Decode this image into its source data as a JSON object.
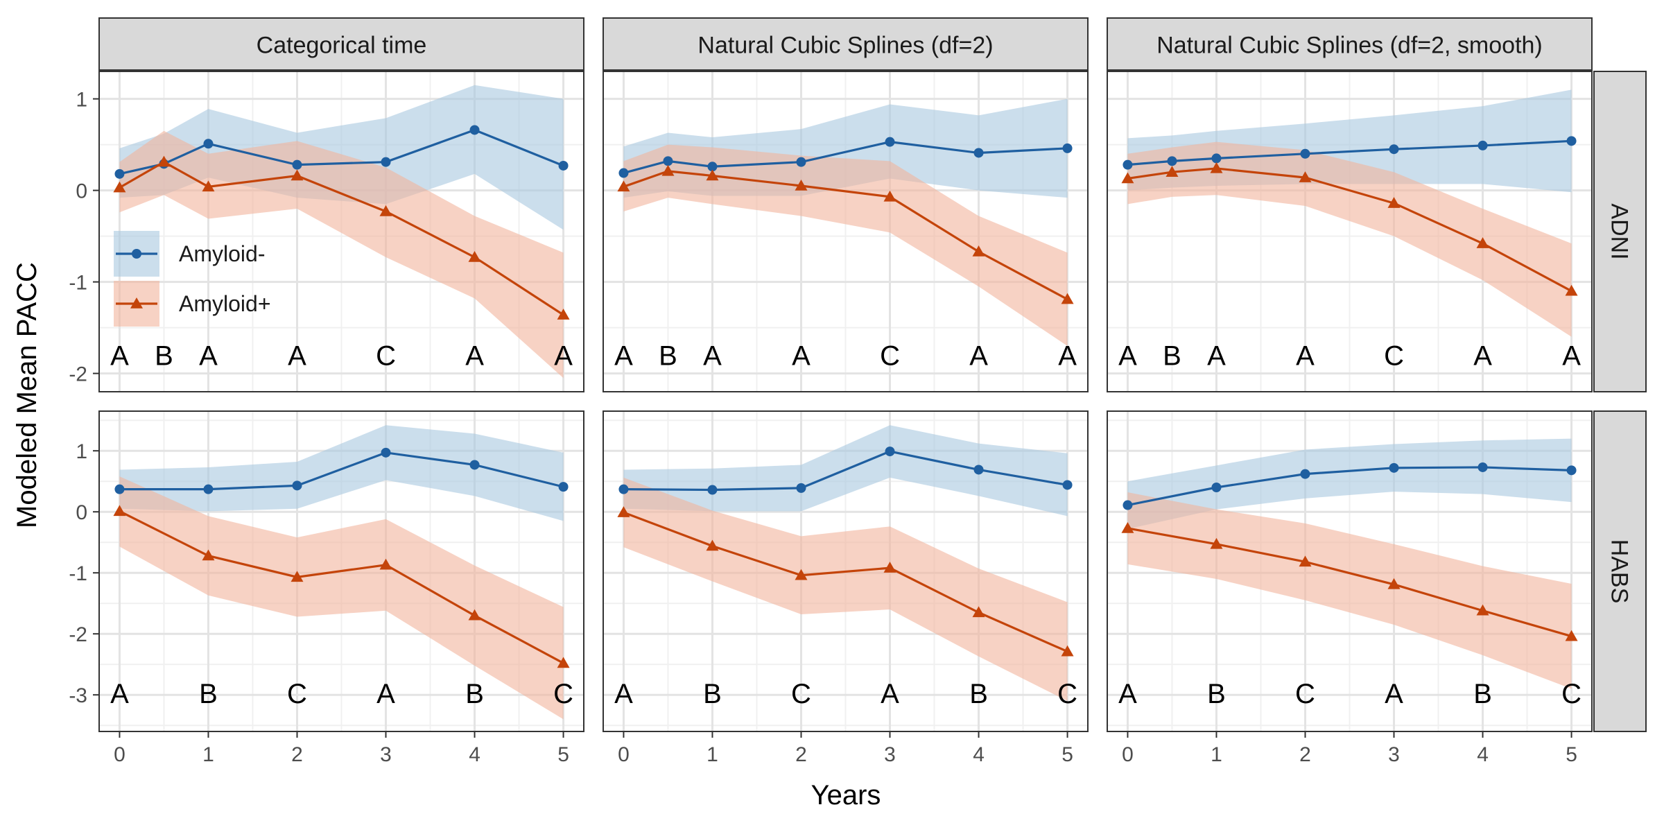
{
  "chart_data": {
    "type": "line",
    "ylabel": "Modeled Mean PACC",
    "xlabel": "Years",
    "xlim": [
      -0.23,
      5.23
    ],
    "x_ticks": [
      0,
      1,
      2,
      3,
      4,
      5
    ],
    "grid": true,
    "legend_position": "inside top-left of first panel",
    "colors": {
      "Amyloid-": "#1f5fa0",
      "Amyloid+": "#c4440a",
      "Amyloid-_band": "#a9c8e0",
      "Amyloid+_band": "#f1b49c"
    },
    "columns": [
      "Categorical time",
      "Natural Cubic Splines (df=2)",
      "Natural Cubic Splines (df=2, smooth)"
    ],
    "rows": [
      "ADNI",
      "HABS"
    ],
    "legend": [
      "Amyloid-",
      "Amyloid+"
    ],
    "row_axes": [
      {
        "ylim": [
          -2.2,
          1.3
        ],
        "ticks": [
          1,
          0,
          -1,
          -2
        ],
        "tick_labels": [
          "1",
          "0",
          "-1",
          "-2"
        ]
      },
      {
        "ylim": [
          -3.6,
          1.65
        ],
        "ticks": [
          1,
          0,
          -1,
          -2,
          -3
        ],
        "tick_labels": [
          "1",
          "0",
          "-1",
          "-2",
          "-3"
        ]
      }
    ],
    "panels": [
      {
        "column": "Categorical time",
        "row": "ADNI",
        "x": [
          0,
          0.5,
          1,
          2,
          3,
          4,
          5
        ],
        "letters": [
          "A",
          "B",
          "A",
          "A",
          "C",
          "A",
          "A"
        ],
        "series": [
          {
            "name": "Amyloid-",
            "values": [
              0.18,
              0.29,
              0.51,
              0.28,
              0.31,
              0.66,
              0.27
            ],
            "lower": [
              -0.08,
              -0.05,
              0.14,
              -0.08,
              -0.15,
              0.18,
              -0.43
            ],
            "upper": [
              0.46,
              0.62,
              0.89,
              0.63,
              0.79,
              1.15,
              1.0
            ]
          },
          {
            "name": "Amyloid+",
            "values": [
              0.03,
              0.31,
              0.04,
              0.16,
              -0.23,
              -0.73,
              -1.36
            ],
            "lower": [
              -0.24,
              -0.05,
              -0.31,
              -0.2,
              -0.73,
              -1.18,
              -2.05
            ],
            "upper": [
              0.31,
              0.65,
              0.4,
              0.54,
              0.25,
              -0.28,
              -0.68
            ]
          }
        ]
      },
      {
        "column": "Natural Cubic Splines (df=2)",
        "row": "ADNI",
        "x": [
          0,
          0.5,
          1,
          2,
          3,
          4,
          5
        ],
        "letters": [
          "A",
          "B",
          "A",
          "A",
          "C",
          "A",
          "A"
        ],
        "series": [
          {
            "name": "Amyloid-",
            "values": [
              0.19,
              0.32,
              0.26,
              0.31,
              0.53,
              0.41,
              0.46
            ],
            "lower": [
              -0.08,
              -0.01,
              -0.06,
              -0.06,
              0.13,
              0.0,
              -0.08
            ],
            "upper": [
              0.48,
              0.63,
              0.58,
              0.67,
              0.94,
              0.82,
              1.0
            ]
          },
          {
            "name": "Amyloid+",
            "values": [
              0.04,
              0.21,
              0.16,
              0.05,
              -0.07,
              -0.67,
              -1.19
            ],
            "lower": [
              -0.23,
              -0.08,
              -0.15,
              -0.28,
              -0.46,
              -1.05,
              -1.7
            ],
            "upper": [
              0.32,
              0.5,
              0.47,
              0.38,
              0.32,
              -0.28,
              -0.68
            ]
          }
        ]
      },
      {
        "column": "Natural Cubic Splines (df=2, smooth)",
        "row": "ADNI",
        "x": [
          0,
          0.5,
          1,
          2,
          3,
          4,
          5
        ],
        "letters": [
          "A",
          "B",
          "A",
          "A",
          "C",
          "A",
          "A"
        ],
        "series": [
          {
            "name": "Amyloid-",
            "values": [
              0.28,
              0.32,
              0.35,
              0.4,
              0.45,
              0.49,
              0.54
            ],
            "lower": [
              0.0,
              0.03,
              0.05,
              0.07,
              0.07,
              0.07,
              -0.02
            ],
            "upper": [
              0.57,
              0.6,
              0.65,
              0.73,
              0.82,
              0.92,
              1.1
            ]
          },
          {
            "name": "Amyloid+",
            "values": [
              0.13,
              0.2,
              0.24,
              0.14,
              -0.14,
              -0.58,
              -1.1
            ],
            "lower": [
              -0.15,
              -0.07,
              -0.05,
              -0.17,
              -0.5,
              -0.98,
              -1.6
            ],
            "upper": [
              0.4,
              0.47,
              0.53,
              0.44,
              0.2,
              -0.2,
              -0.58
            ]
          }
        ]
      },
      {
        "column": "Categorical time",
        "row": "HABS",
        "x": [
          0,
          1,
          2,
          3,
          4,
          5
        ],
        "letters": [
          "A",
          "B",
          "C",
          "A",
          "B",
          "C"
        ],
        "series": [
          {
            "name": "Amyloid-",
            "values": [
              0.37,
              0.37,
              0.43,
              0.97,
              0.77,
              0.41
            ],
            "lower": [
              0.05,
              0.01,
              0.05,
              0.52,
              0.26,
              -0.15
            ],
            "upper": [
              0.69,
              0.73,
              0.82,
              1.42,
              1.28,
              0.97
            ]
          },
          {
            "name": "Amyloid+",
            "values": [
              0.01,
              -0.72,
              -1.07,
              -0.87,
              -1.7,
              -2.48
            ],
            "lower": [
              -0.57,
              -1.37,
              -1.72,
              -1.62,
              -2.52,
              -3.4
            ],
            "upper": [
              0.58,
              -0.07,
              -0.42,
              -0.12,
              -0.88,
              -1.56
            ]
          }
        ]
      },
      {
        "column": "Natural Cubic Splines (df=2)",
        "row": "HABS",
        "x": [
          0,
          1,
          2,
          3,
          4,
          5
        ],
        "letters": [
          "A",
          "B",
          "C",
          "A",
          "B",
          "C"
        ],
        "series": [
          {
            "name": "Amyloid-",
            "values": [
              0.37,
              0.36,
              0.39,
              0.99,
              0.69,
              0.44
            ],
            "lower": [
              0.05,
              0.01,
              0.01,
              0.56,
              0.26,
              -0.07
            ],
            "upper": [
              0.69,
              0.71,
              0.77,
              1.42,
              1.12,
              0.96
            ]
          },
          {
            "name": "Amyloid+",
            "values": [
              -0.01,
              -0.56,
              -1.04,
              -0.92,
              -1.65,
              -2.29
            ],
            "lower": [
              -0.58,
              -1.14,
              -1.68,
              -1.6,
              -2.37,
              -3.1
            ],
            "upper": [
              0.56,
              0.02,
              -0.4,
              -0.24,
              -0.93,
              -1.48
            ]
          }
        ]
      },
      {
        "column": "Natural Cubic Splines (df=2, smooth)",
        "row": "HABS",
        "x": [
          0,
          1,
          2,
          3,
          4,
          5
        ],
        "letters": [
          "A",
          "B",
          "C",
          "A",
          "B",
          "C"
        ],
        "series": [
          {
            "name": "Amyloid-",
            "values": [
              0.11,
              0.4,
              0.62,
              0.72,
              0.73,
              0.68
            ],
            "lower": [
              -0.28,
              0.04,
              0.22,
              0.33,
              0.29,
              0.16
            ],
            "upper": [
              0.5,
              0.76,
              1.02,
              1.11,
              1.17,
              1.2
            ]
          },
          {
            "name": "Amyloid+",
            "values": [
              -0.27,
              -0.53,
              -0.82,
              -1.19,
              -1.62,
              -2.04
            ],
            "lower": [
              -0.86,
              -1.1,
              -1.45,
              -1.85,
              -2.35,
              -2.9
            ],
            "upper": [
              0.32,
              0.04,
              -0.19,
              -0.53,
              -0.89,
              -1.18
            ]
          }
        ]
      }
    ]
  }
}
